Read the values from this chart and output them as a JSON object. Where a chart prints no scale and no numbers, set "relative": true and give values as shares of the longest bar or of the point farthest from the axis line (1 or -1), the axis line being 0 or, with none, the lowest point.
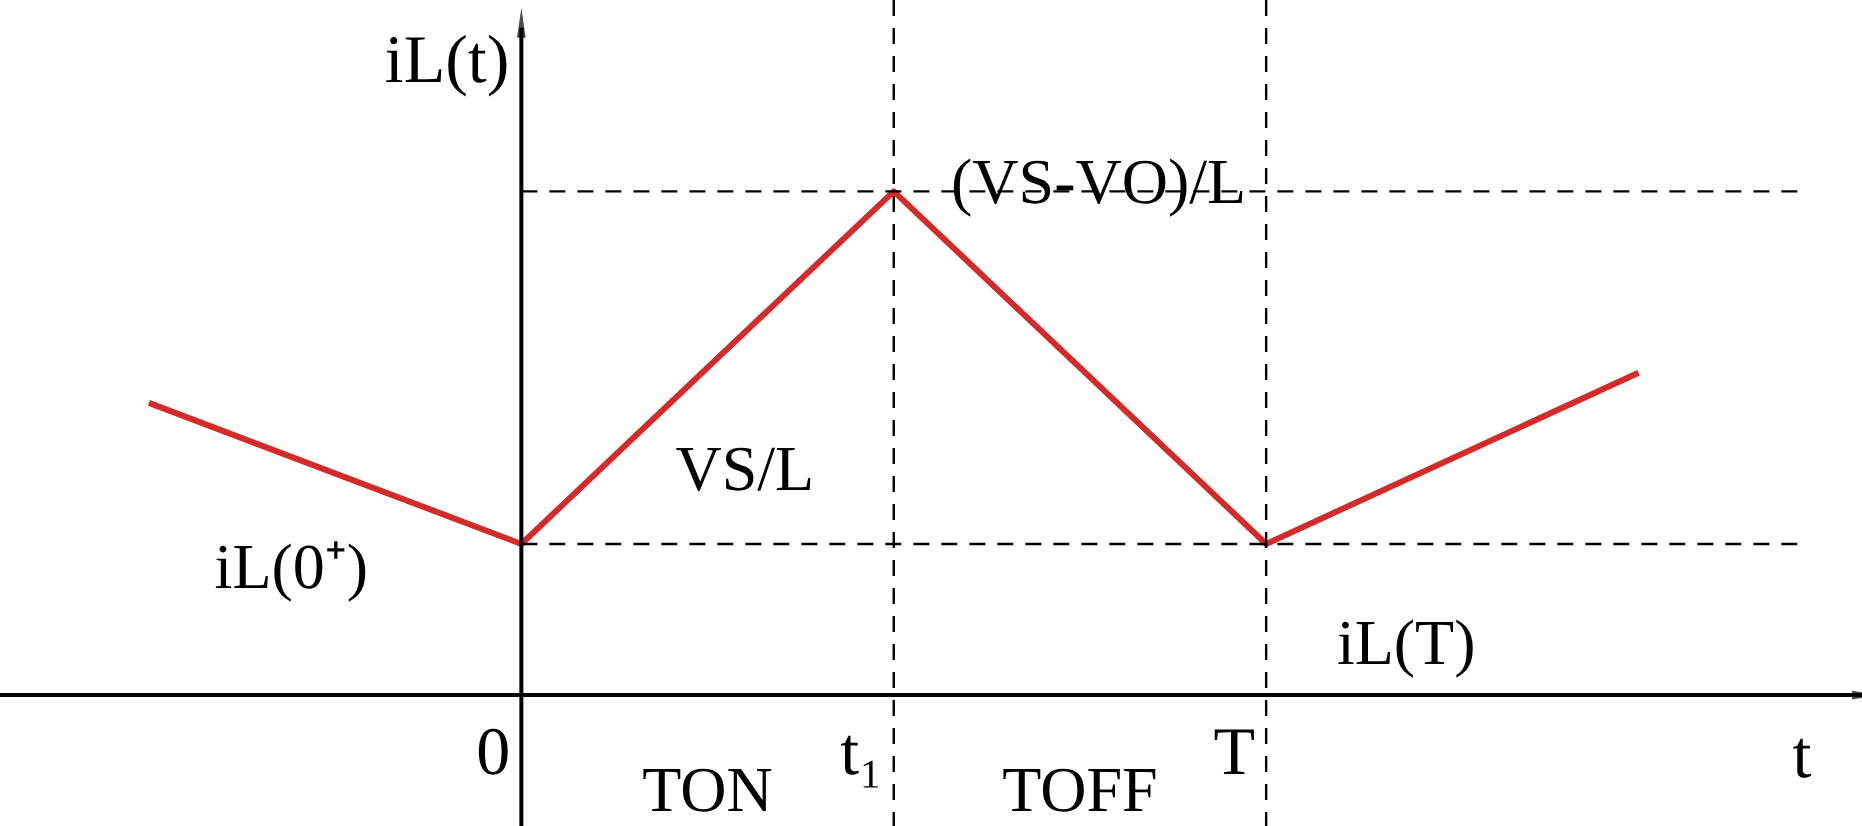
{
  "chart_data": {
    "type": "line",
    "relative": true,
    "ylabel": "iL(t)",
    "xlabel": "t",
    "categories": [
      null,
      "0",
      "t₁",
      "T",
      null
    ],
    "series": [
      {
        "color": "#d42a2a",
        "values": [
          0.58,
          0.3,
          1,
          0.3,
          0.64
        ]
      }
    ],
    "ref_lines": [
      {
        "axis": "x",
        "value": "0",
        "line_style": "solid",
        "color": "#000000"
      },
      {
        "axis": "y",
        "value": 1,
        "line_style": "dashed",
        "color": "#000000"
      },
      {
        "axis": "y",
        "value": 0.3,
        "line_style": "dashed",
        "color": "#000000"
      },
      {
        "axis": "x",
        "value": "t₁",
        "line_style": "dashed",
        "color": "#000000"
      },
      {
        "axis": "x",
        "value": "T",
        "line_style": "dashed",
        "color": "#000000"
      }
    ],
    "annotations": [
      {
        "text": "iL(0⁺)",
        "x": "0",
        "y": 0.3
      },
      {
        "text": "iL(T)",
        "x": "T",
        "y": 0.3
      },
      "VS/L",
      "(VS-VO)/L",
      "TON",
      "TOFF"
    ],
    "grid": false,
    "marker": "none",
    "line_style": "solid"
  }
}
